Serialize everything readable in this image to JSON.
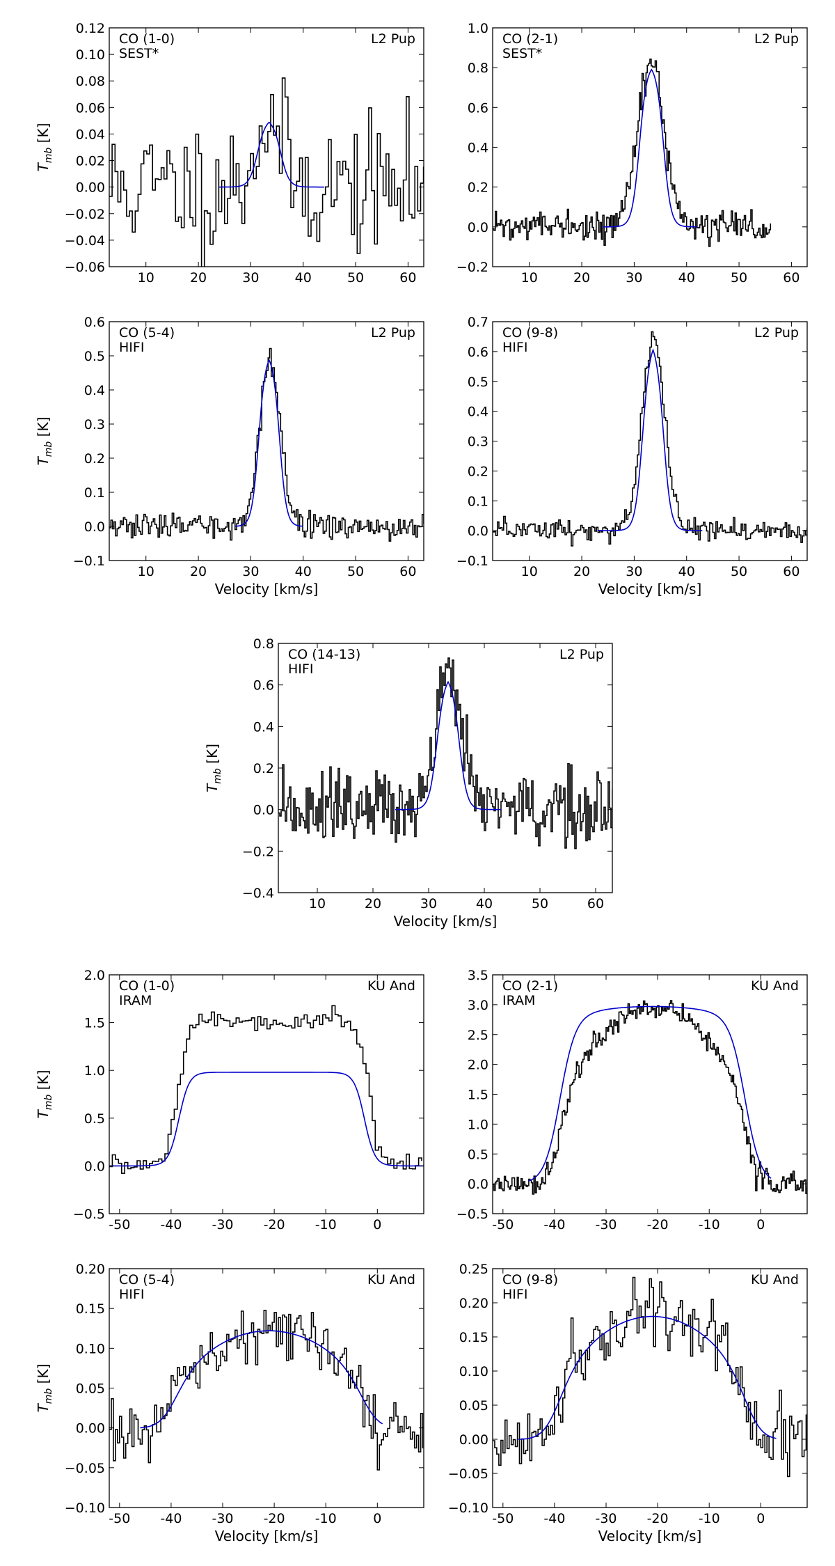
{
  "chart_data": [
    {
      "type": "line",
      "label_left": [
        "CO (1-0)",
        "SEST*"
      ],
      "label_right": "L2 Pup",
      "xlabel": "",
      "ylabel": "T_mb [K]",
      "xlim": [
        3,
        63
      ],
      "ylim": [
        -0.06,
        0.12
      ],
      "xticks": [
        10,
        20,
        30,
        40,
        50,
        60
      ],
      "yticks": [
        -0.06,
        -0.04,
        -0.02,
        0.0,
        0.02,
        0.04,
        0.06,
        0.08,
        0.1,
        0.12
      ],
      "yfmt": 2,
      "observed": {
        "x_range": [
          3,
          63
        ],
        "center": 33,
        "width": 2.5,
        "peak": 0.05,
        "noise": 0.025,
        "step": 0.55,
        "seed": 11
      },
      "model": {
        "x_range": [
          24,
          44
        ],
        "center": 33.5,
        "halfwidth": 2.2,
        "peak": 0.052,
        "edge": 0.8
      },
      "series": [
        {
          "values_desc": "observed spectrum (step, black)"
        },
        {
          "values_desc": "model (blue)"
        }
      ]
    },
    {
      "type": "line",
      "label_left": [
        "CO (2-1)",
        "SEST*"
      ],
      "label_right": "L2 Pup",
      "xlabel": "",
      "ylabel": "",
      "xlim": [
        3,
        63
      ],
      "ylim": [
        -0.2,
        1.0
      ],
      "xticks": [
        10,
        20,
        30,
        40,
        50,
        60
      ],
      "yticks": [
        -0.2,
        0.0,
        0.2,
        0.4,
        0.6,
        0.8,
        1.0
      ],
      "yfmt": 1,
      "observed": {
        "x_range": [
          3,
          56
        ],
        "center": 33,
        "width": 2.6,
        "peak": 0.82,
        "noise": 0.035,
        "step": 0.25,
        "seed": 22
      },
      "model": {
        "x_range": [
          24,
          42
        ],
        "center": 33.3,
        "halfwidth": 2.3,
        "peak": 0.82,
        "edge": 0.7
      }
    },
    {
      "type": "line",
      "label_left": [
        "CO (5-4)",
        "HIFI"
      ],
      "label_right": "L2 Pup",
      "xlabel": "Velocity [km/s]",
      "ylabel": "T_mb [K]",
      "xlim": [
        3,
        63
      ],
      "ylim": [
        -0.1,
        0.6
      ],
      "xticks": [
        10,
        20,
        30,
        40,
        50,
        60
      ],
      "yticks": [
        -0.1,
        0.0,
        0.1,
        0.2,
        0.3,
        0.4,
        0.5,
        0.6
      ],
      "yfmt": 1,
      "observed": {
        "x_range": [
          3,
          63
        ],
        "center": 33.5,
        "width": 2.0,
        "peak": 0.48,
        "noise": 0.018,
        "step": 0.3,
        "seed": 33
      },
      "model": {
        "x_range": [
          27,
          40
        ],
        "center": 33.5,
        "halfwidth": 2.0,
        "peak": 0.51,
        "edge": 0.65
      }
    },
    {
      "type": "line",
      "label_left": [
        "CO (9-8)",
        "HIFI"
      ],
      "label_right": "L2 Pup",
      "xlabel": "Velocity [km/s]",
      "ylabel": "",
      "xlim": [
        3,
        63
      ],
      "ylim": [
        -0.1,
        0.7
      ],
      "xticks": [
        10,
        20,
        30,
        40,
        50,
        60
      ],
      "yticks": [
        -0.1,
        0.0,
        0.1,
        0.2,
        0.3,
        0.4,
        0.5,
        0.6,
        0.7
      ],
      "yfmt": 1,
      "observed": {
        "x_range": [
          3,
          63
        ],
        "center": 33.5,
        "width": 2.2,
        "peak": 0.64,
        "noise": 0.02,
        "step": 0.3,
        "seed": 44
      },
      "model": {
        "x_range": [
          23,
          43
        ],
        "center": 33.6,
        "halfwidth": 2.0,
        "peak": 0.64,
        "edge": 0.7
      }
    },
    {
      "type": "line",
      "label_left": [
        "CO (14-13)",
        "HIFI"
      ],
      "label_right": "L2 Pup",
      "xlabel": "Velocity [km/s]",
      "ylabel": "T_mb [K]",
      "xlim": [
        3,
        63
      ],
      "ylim": [
        -0.4,
        0.8
      ],
      "xticks": [
        10,
        20,
        30,
        40,
        50,
        60
      ],
      "yticks": [
        -0.4,
        -0.2,
        0.0,
        0.2,
        0.4,
        0.6,
        0.8
      ],
      "yfmt": 1,
      "observed": {
        "x_range": [
          3,
          63
        ],
        "center": 33.5,
        "width": 2.2,
        "peak": 0.66,
        "noise": 0.09,
        "step": 0.25,
        "seed": 55
      },
      "model": {
        "x_range": [
          24,
          43
        ],
        "center": 33.5,
        "halfwidth": 2.0,
        "peak": 0.65,
        "edge": 0.7
      }
    },
    {
      "type": "line",
      "label_left": [
        "CO (1-0)",
        "IRAM"
      ],
      "label_right": "KU And",
      "xlabel": "",
      "ylabel": "T_mb [K]",
      "xlim": [
        -52,
        9
      ],
      "ylim": [
        -0.5,
        2.0
      ],
      "xticks": [
        -50,
        -40,
        -30,
        -20,
        -10,
        0
      ],
      "yticks": [
        -0.5,
        0.0,
        0.5,
        1.0,
        1.5,
        2.0
      ],
      "yfmt": 1,
      "observed": {
        "x_range": [
          -52,
          9
        ],
        "shape": "plateau",
        "center": -20.5,
        "halfwidth": 18.5,
        "peak": 1.55,
        "edge": 1.2,
        "dip": 0.12,
        "noise": 0.05,
        "step": 0.6,
        "seed": 66
      },
      "model": {
        "x_range": [
          -52,
          9
        ],
        "shape": "flat",
        "center": -20.5,
        "halfwidth": 18.0,
        "peak": 0.98,
        "edge": 1.0
      }
    },
    {
      "type": "line",
      "label_left": [
        "CO (2-1)",
        "IRAM"
      ],
      "label_right": "KU And",
      "xlabel": "",
      "ylabel": "",
      "xlim": [
        -52,
        9
      ],
      "ylim": [
        -0.5,
        3.5
      ],
      "xticks": [
        -50,
        -40,
        -30,
        -20,
        -10,
        0
      ],
      "yticks": [
        -0.5,
        0.0,
        0.5,
        1.0,
        1.5,
        2.0,
        2.5,
        3.0,
        3.5
      ],
      "yfmt": 1,
      "observed": {
        "x_range": [
          -52,
          9
        ],
        "shape": "parabola",
        "center": -21,
        "halfwidth": 18.5,
        "peak": 2.95,
        "edge": 1.2,
        "base": 1.2,
        "noise": 0.1,
        "step": 0.25,
        "seed": 77
      },
      "model": {
        "x_range": [
          -45,
          2
        ],
        "shape": "rounded",
        "center": -21,
        "halfwidth": 18.0,
        "peak": 2.97,
        "edge": 1.5
      }
    },
    {
      "type": "line",
      "label_left": [
        "CO (5-4)",
        "HIFI"
      ],
      "label_right": "KU And",
      "xlabel": "Velocity [km/s]",
      "ylabel": "T_mb [K]",
      "xlim": [
        -52,
        9
      ],
      "ylim": [
        -0.1,
        0.2
      ],
      "xticks": [
        -50,
        -40,
        -30,
        -20,
        -10,
        0
      ],
      "yticks": [
        -0.1,
        -0.05,
        0.0,
        0.05,
        0.1,
        0.15,
        0.2
      ],
      "yfmt": 2,
      "observed": {
        "x_range": [
          -52,
          9
        ],
        "shape": "parabola",
        "center": -21,
        "halfwidth": 19,
        "peak": 0.12,
        "edge": 1.2,
        "noise": 0.018,
        "step": 0.4,
        "seed": 88
      },
      "model": {
        "x_range": [
          -46,
          1
        ],
        "shape": "parabola",
        "center": -21,
        "halfwidth": 19,
        "peak": 0.122,
        "edge": 1.8
      }
    },
    {
      "type": "line",
      "label_left": [
        "CO (9-8)",
        "HIFI"
      ],
      "label_right": "KU And",
      "xlabel": "Velocity [km/s]",
      "ylabel": "",
      "xlim": [
        -52,
        9
      ],
      "ylim": [
        -0.1,
        0.25
      ],
      "xticks": [
        -50,
        -40,
        -30,
        -20,
        -10,
        0
      ],
      "yticks": [
        -0.1,
        -0.05,
        0.0,
        0.05,
        0.1,
        0.15,
        0.2,
        0.25
      ],
      "yfmt": 2,
      "observed": {
        "x_range": [
          -52,
          9
        ],
        "shape": "parabola",
        "center": -21,
        "halfwidth": 19,
        "peak": 0.18,
        "edge": 1.2,
        "noise": 0.025,
        "step": 0.4,
        "seed": 99
      },
      "model": {
        "x_range": [
          -47,
          3
        ],
        "shape": "parabola",
        "center": -21,
        "halfwidth": 19,
        "peak": 0.18,
        "edge": 1.8
      }
    }
  ],
  "colors": {
    "observed": "#000000",
    "model": "#0000cc"
  }
}
